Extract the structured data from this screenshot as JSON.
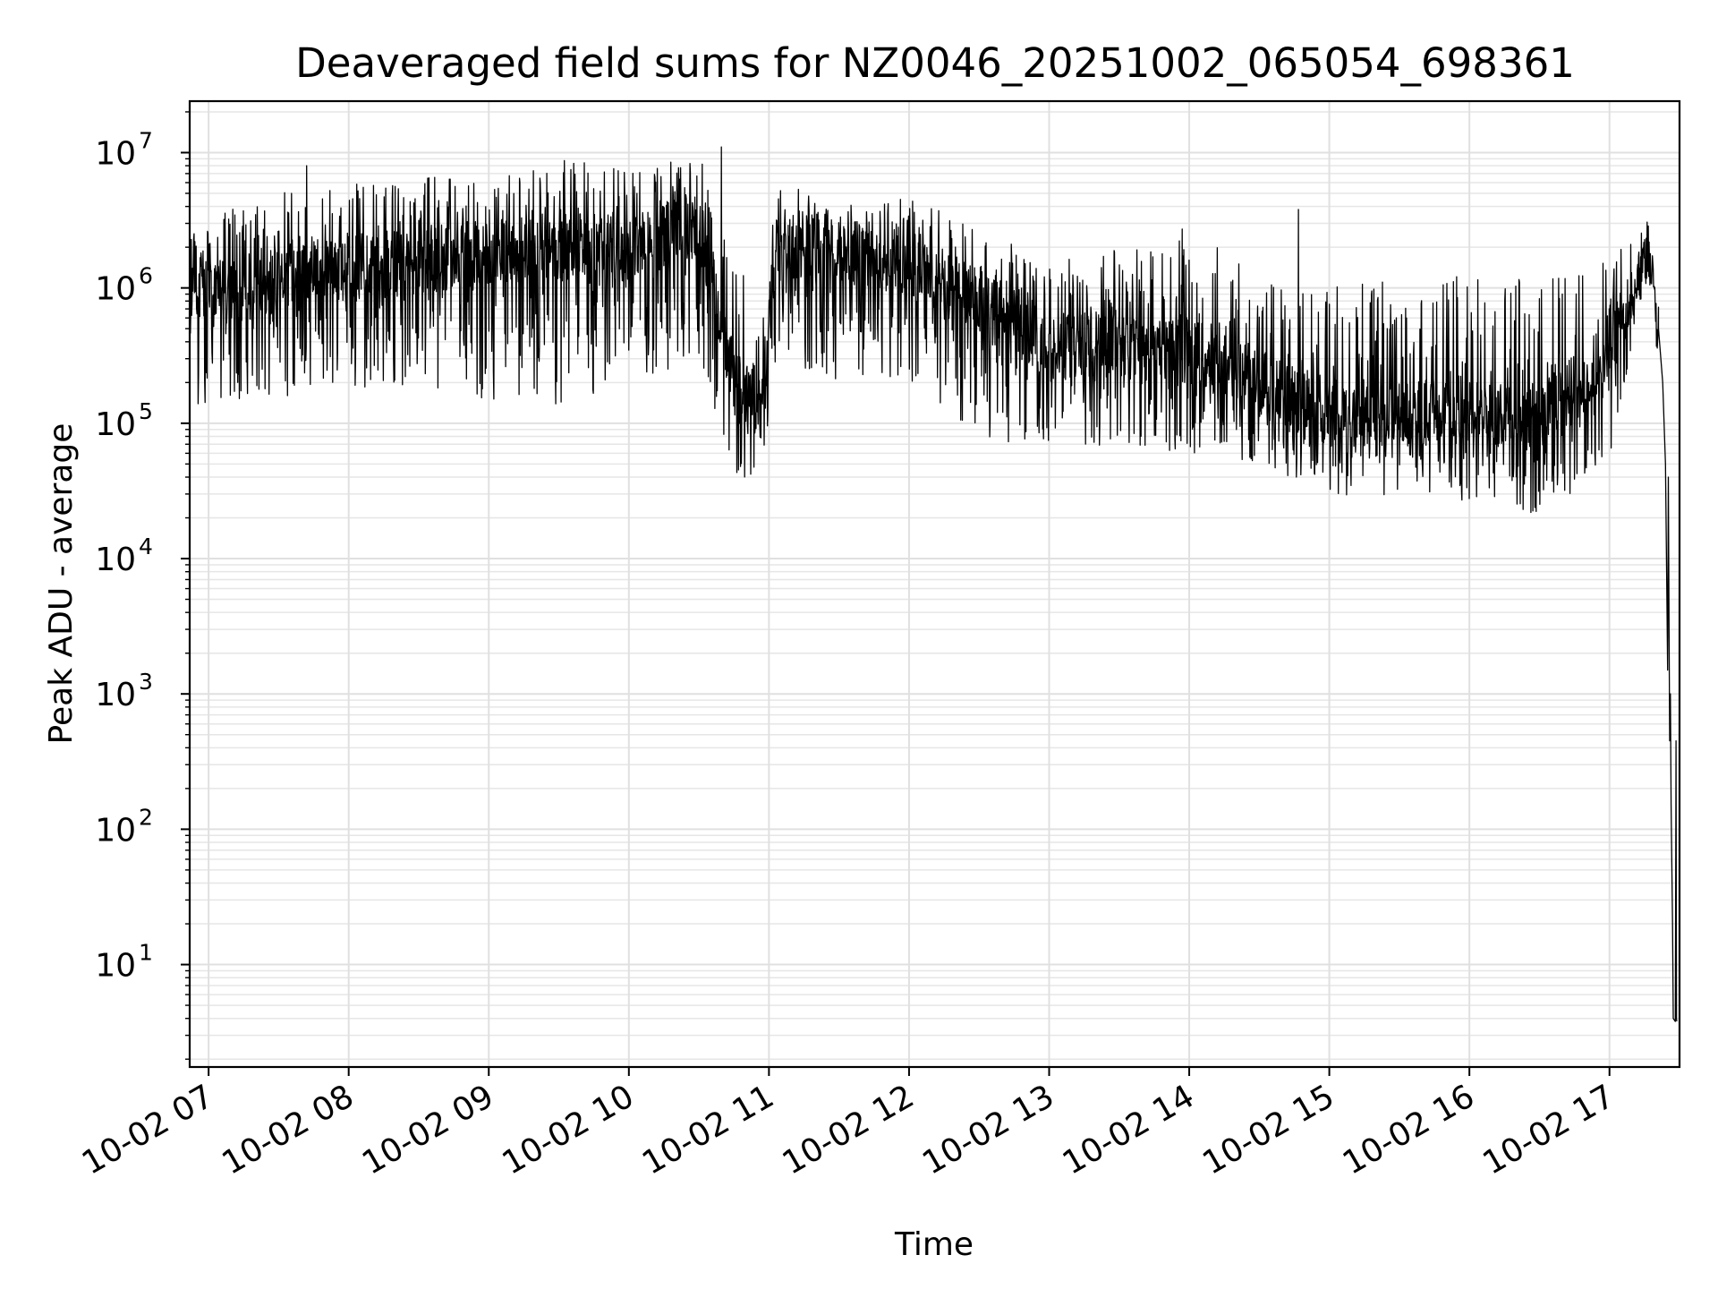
{
  "chart_data": {
    "type": "line",
    "title": "Deaveraged field sums for NZ0046_20251002_065054_698361",
    "xlabel": "Time",
    "ylabel": "Peak ADU - average",
    "yscale": "log",
    "ylim": [
      1.75,
      24000000
    ],
    "xlim_hours": [
      6.865,
      17.5
    ],
    "grid": true,
    "x_ticks": [
      {
        "hour": 7,
        "label": "10-02 07"
      },
      {
        "hour": 8,
        "label": "10-02 08"
      },
      {
        "hour": 9,
        "label": "10-02 09"
      },
      {
        "hour": 10,
        "label": "10-02 10"
      },
      {
        "hour": 11,
        "label": "10-02 11"
      },
      {
        "hour": 12,
        "label": "10-02 12"
      },
      {
        "hour": 13,
        "label": "10-02 13"
      },
      {
        "hour": 14,
        "label": "10-02 14"
      },
      {
        "hour": 15,
        "label": "10-02 15"
      },
      {
        "hour": 16,
        "label": "10-02 16"
      },
      {
        "hour": 17,
        "label": "10-02 17"
      }
    ],
    "y_ticks": [
      {
        "value": 10,
        "base": "10",
        "exp": "1"
      },
      {
        "value": 100,
        "base": "10",
        "exp": "2"
      },
      {
        "value": 1000,
        "base": "10",
        "exp": "3"
      },
      {
        "value": 10000,
        "base": "10",
        "exp": "4"
      },
      {
        "value": 100000,
        "base": "10",
        "exp": "5"
      },
      {
        "value": 1000000,
        "base": "10",
        "exp": "6"
      },
      {
        "value": 10000000,
        "base": "10",
        "exp": "7"
      }
    ],
    "series": [
      {
        "name": "Peak ADU - average",
        "color": "#000000",
        "profile": [
          {
            "hour": 6.87,
            "center": 1000000,
            "low": 150000,
            "high": 2500000
          },
          {
            "hour": 7.0,
            "center": 900000,
            "low": 120000,
            "high": 3500000
          },
          {
            "hour": 7.5,
            "center": 1100000,
            "low": 150000,
            "high": 5000000
          },
          {
            "hour": 8.0,
            "center": 1400000,
            "low": 180000,
            "high": 6000000
          },
          {
            "hour": 8.5,
            "center": 1600000,
            "low": 180000,
            "high": 6500000
          },
          {
            "hour": 9.0,
            "center": 1800000,
            "low": 150000,
            "high": 7000000
          },
          {
            "hour": 9.5,
            "center": 2000000,
            "low": 130000,
            "high": 9000000
          },
          {
            "hour": 10.0,
            "center": 2000000,
            "low": 200000,
            "high": 8000000
          },
          {
            "hour": 10.5,
            "center": 3000000,
            "low": 300000,
            "high": 10000000
          },
          {
            "hour": 10.75,
            "center": 200000,
            "low": 35000,
            "high": 1500000
          },
          {
            "hour": 10.95,
            "center": 150000,
            "low": 40000,
            "high": 1000000
          },
          {
            "hour": 11.05,
            "center": 2000000,
            "low": 300000,
            "high": 6000000
          },
          {
            "hour": 11.5,
            "center": 2000000,
            "low": 200000,
            "high": 5000000
          },
          {
            "hour": 12.0,
            "center": 1500000,
            "low": 200000,
            "high": 4500000
          },
          {
            "hour": 12.5,
            "center": 800000,
            "low": 80000,
            "high": 3000000
          },
          {
            "hour": 13.0,
            "center": 350000,
            "low": 60000,
            "high": 1500000
          },
          {
            "hour": 13.5,
            "center": 400000,
            "low": 70000,
            "high": 2000000
          },
          {
            "hour": 14.0,
            "center": 350000,
            "low": 60000,
            "high": 3000000
          },
          {
            "hour": 14.5,
            "center": 200000,
            "low": 50000,
            "high": 1200000
          },
          {
            "hour": 15.0,
            "center": 120000,
            "low": 30000,
            "high": 1000000
          },
          {
            "hour": 15.5,
            "center": 120000,
            "low": 28000,
            "high": 1200000
          },
          {
            "hour": 16.0,
            "center": 120000,
            "low": 25000,
            "high": 1300000
          },
          {
            "hour": 16.5,
            "center": 110000,
            "low": 20000,
            "high": 1400000
          },
          {
            "hour": 17.0,
            "center": 300000,
            "low": 50000,
            "high": 1600000
          },
          {
            "hour": 17.2,
            "center": 1500000,
            "low": 600000,
            "high": 2800000
          },
          {
            "hour": 17.28,
            "center": 2000000,
            "low": 1500000,
            "high": 2500000
          },
          {
            "hour": 17.35,
            "center": 500000,
            "low": 200000,
            "high": 700000
          }
        ],
        "tail": [
          {
            "hour": 17.35,
            "value": 500000
          },
          {
            "hour": 17.38,
            "value": 200000
          },
          {
            "hour": 17.4,
            "value": 50000
          },
          {
            "hour": 17.41,
            "value": 5000
          },
          {
            "hour": 17.415,
            "value": 1500
          },
          {
            "hour": 17.42,
            "value": 40000
          },
          {
            "hour": 17.425,
            "value": 3000
          },
          {
            "hour": 17.43,
            "value": 450
          },
          {
            "hour": 17.435,
            "value": 1000
          },
          {
            "hour": 17.44,
            "value": 150
          },
          {
            "hour": 17.45,
            "value": 20
          },
          {
            "hour": 17.455,
            "value": 4
          },
          {
            "hour": 17.47,
            "value": 3.8
          },
          {
            "hour": 17.475,
            "value": 450
          },
          {
            "hour": 17.478,
            "value": 4
          },
          {
            "hour": 17.48,
            "value": 3.8
          }
        ],
        "notable_spikes": [
          {
            "hour": 10.66,
            "value": 11000000
          },
          {
            "hour": 14.78,
            "value": 3800000
          },
          {
            "hour": 7.7,
            "value": 8000000
          }
        ]
      }
    ]
  }
}
